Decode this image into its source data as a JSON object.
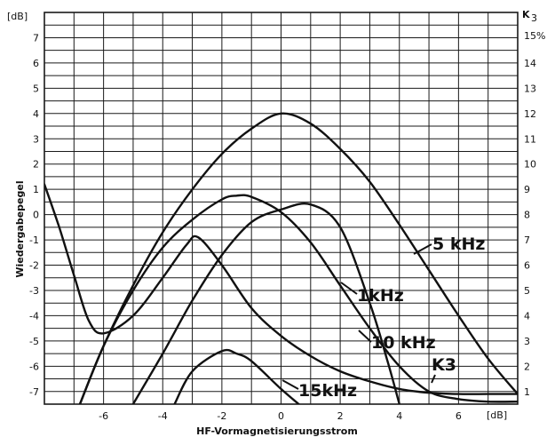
{
  "chart_data": {
    "type": "line",
    "xlabel": "HF-Vormagnetisierungsstrom",
    "ylabel": "Wiedergabepegel",
    "y_unit": "[dB]",
    "x_unit": "[dB]",
    "y2_label": "K",
    "y2_label_sub": "3",
    "y2_unit": "15%",
    "xlim": [
      -8,
      8
    ],
    "ylim": [
      -7.5,
      8
    ],
    "y2lim": [
      0.5,
      16
    ],
    "x_ticks": [
      "-6",
      "-4",
      "-2",
      "0",
      "2",
      "4",
      "6"
    ],
    "y_ticks": [
      "7",
      "6",
      "5",
      "4",
      "3",
      "2",
      "1",
      "0",
      "-1",
      "-2",
      "-3",
      "-4",
      "-5",
      "-6",
      "-7"
    ],
    "y2_ticks": [
      "15",
      "14",
      "13",
      "12",
      "11",
      "10",
      "9",
      "8",
      "7",
      "6",
      "5",
      "4",
      "3",
      "2",
      "1"
    ],
    "grid": true,
    "series": [
      {
        "name": "5 kHz",
        "axis": "left",
        "x": [
          -6.8,
          -6.0,
          -5.0,
          -4.0,
          -3.0,
          -2.0,
          -1.0,
          0.0,
          1.0,
          2.0,
          3.0,
          4.0,
          5.0,
          6.0,
          7.0,
          8.0
        ],
        "y": [
          -7.5,
          -5.2,
          -2.8,
          -0.7,
          1.0,
          2.4,
          3.4,
          4.0,
          3.6,
          2.6,
          1.3,
          -0.4,
          -2.2,
          -4.0,
          -5.7,
          -7.1
        ]
      },
      {
        "name": "1kHz",
        "axis": "left",
        "x": [
          -6.8,
          -6.0,
          -5.0,
          -4.0,
          -3.0,
          -2.0,
          -1.5,
          -1.0,
          0.0,
          1.0,
          2.0,
          3.0,
          4.0,
          5.0,
          6.0,
          7.0,
          8.0
        ],
        "y": [
          -7.5,
          -5.2,
          -3.0,
          -1.3,
          -0.2,
          0.6,
          0.75,
          0.7,
          0.1,
          -1.1,
          -2.8,
          -4.5,
          -6.0,
          -7.0,
          -7.3,
          -7.4,
          -7.4
        ]
      },
      {
        "name": "10 kHz",
        "axis": "left",
        "x": [
          -5.0,
          -4.0,
          -3.0,
          -2.0,
          -1.0,
          0.0,
          1.0,
          2.0,
          3.0,
          3.6,
          4.0
        ],
        "y": [
          -7.5,
          -5.5,
          -3.4,
          -1.6,
          -0.3,
          0.2,
          0.4,
          -0.5,
          -3.5,
          -5.8,
          -7.5
        ]
      },
      {
        "name": "15kHz",
        "axis": "left",
        "x": [
          -3.6,
          -3.0,
          -2.0,
          -1.5,
          -1.0,
          0.0,
          0.6
        ],
        "y": [
          -7.5,
          -6.2,
          -5.4,
          -5.5,
          -5.8,
          -6.9,
          -7.5
        ]
      },
      {
        "name": "K3",
        "axis": "right",
        "x": [
          -8.0,
          -7.5,
          -7.0,
          -6.5,
          -6.0,
          -5.0,
          -4.0,
          -3.2,
          -2.8,
          -2.0,
          -1.0,
          0.0,
          1.0,
          2.0,
          3.0,
          4.0,
          5.0,
          6.0,
          7.0,
          8.0
        ],
        "y": [
          9.2,
          7.5,
          5.6,
          3.8,
          3.3,
          4.0,
          5.5,
          6.8,
          7.1,
          6.0,
          4.3,
          3.2,
          2.4,
          1.8,
          1.4,
          1.1,
          0.95,
          0.9,
          0.9,
          0.9
        ]
      }
    ]
  }
}
